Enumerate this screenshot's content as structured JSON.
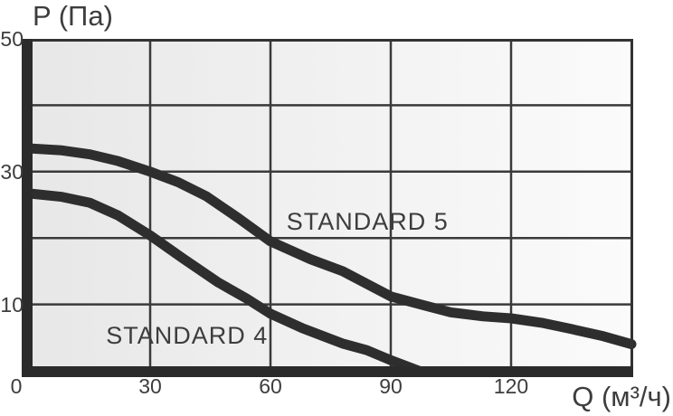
{
  "chart_data": {
    "type": "line",
    "title": "",
    "x_axis": {
      "label": "Q (м³/ч)",
      "ticks": [
        0,
        30,
        60,
        90,
        120
      ],
      "gridlines": [
        30,
        60,
        90,
        120
      ],
      "range": [
        0,
        150
      ]
    },
    "y_axis": {
      "label": "P (Па)",
      "ticks": [
        50,
        30,
        10
      ],
      "gridlines": [
        10,
        20,
        30,
        40
      ],
      "range": [
        0,
        50
      ]
    },
    "grid": true,
    "legend_position": "inline-annotations",
    "series": [
      {
        "name": "STANDARD 5",
        "points": [
          [
            0,
            33.5
          ],
          [
            8,
            33.2
          ],
          [
            15,
            32.6
          ],
          [
            22,
            31.6
          ],
          [
            30,
            30
          ],
          [
            37,
            28.4
          ],
          [
            44,
            26.3
          ],
          [
            52,
            23.0
          ],
          [
            60,
            19.5
          ],
          [
            70,
            16.8
          ],
          [
            78,
            15.0
          ],
          [
            90,
            11.2
          ],
          [
            98,
            9.9
          ],
          [
            105,
            8.8
          ],
          [
            113,
            8.2
          ],
          [
            120,
            7.9
          ],
          [
            128,
            7.2
          ],
          [
            135,
            6.3
          ],
          [
            143,
            5.2
          ],
          [
            150,
            4.0
          ]
        ],
        "label_pos": {
          "q": 64,
          "p": 22.3
        }
      },
      {
        "name": "STANDARD 4",
        "points": [
          [
            0,
            26.7
          ],
          [
            8,
            26.2
          ],
          [
            15,
            25.3
          ],
          [
            22,
            23.4
          ],
          [
            30,
            20.4
          ],
          [
            38,
            17.0
          ],
          [
            47,
            13.3
          ],
          [
            54,
            10.9
          ],
          [
            60,
            8.6
          ],
          [
            68,
            6.4
          ],
          [
            78,
            4.1
          ],
          [
            84,
            3.1
          ],
          [
            90,
            1.6
          ],
          [
            97,
            0
          ]
        ],
        "label_pos": {
          "q": 19,
          "p": 5.2
        }
      }
    ]
  },
  "colors": {
    "curve": "#2e2e2e",
    "grid": "#3a3a3a",
    "axis": "#2b2b2b",
    "border": "#333333",
    "text": "#3d3d3d",
    "plot_bg_left": "#e7e7e7",
    "plot_bg_right": "#fbfbfb",
    "page_bg": "#ffffff"
  }
}
